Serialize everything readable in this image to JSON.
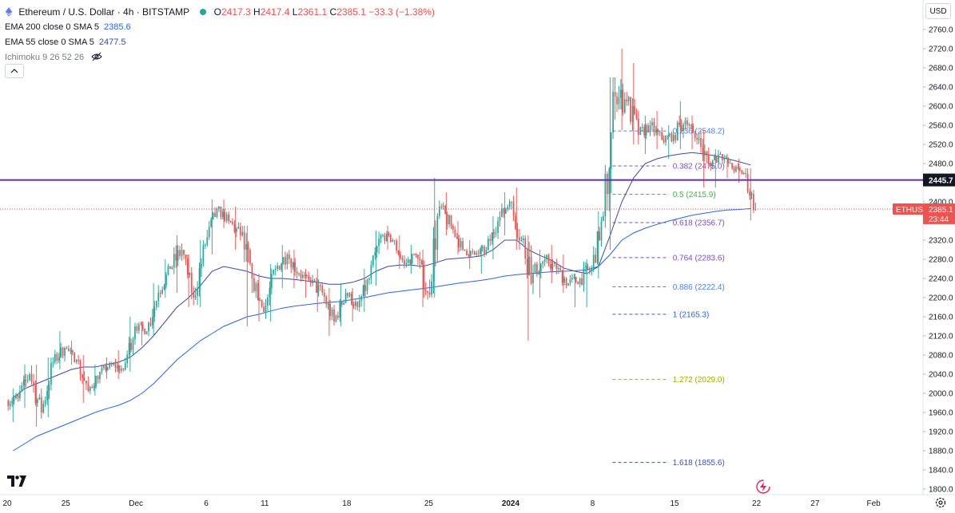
{
  "header": {
    "symbol_title": "Ethereum / U.S. Dollar · 4h · BITSTAMP",
    "ohlc": {
      "O_label": "O",
      "O": "2417.3",
      "H_label": "H",
      "H": "2417.4",
      "L_label": "L",
      "L": "2361.1",
      "C_label": "C",
      "C": "2385.1",
      "change": "−33.3 (−1.38%)"
    },
    "ema200_label": "EMA 200 close 0 SMA 5",
    "ema200_value": "2385.6",
    "ema55_label": "EMA 55 close 0 SMA 5",
    "ema55_value": "2477.5",
    "ichimoku_label": "Ichimoku 9 26 52 26"
  },
  "currency": "USD",
  "colors": {
    "up": "#26a69a",
    "down": "#ef5350",
    "ema200": "#2962ff",
    "ema55": "#3949ab",
    "hline": "#5b2fb6",
    "fib_green": "#4caf50",
    "fib_blue": "#2962ff",
    "fib_purple": "#7b4fc0",
    "fib_olive": "#9cb000",
    "fib_lightblue": "#4f82e8"
  },
  "chart_data": {
    "type": "candlestick",
    "ylim": [
      1790,
      2780
    ],
    "y_ticks": [
      1800,
      1840,
      1880,
      1920,
      1960,
      2000,
      2040,
      2080,
      2120,
      2160,
      2200,
      2240,
      2280,
      2320,
      2360,
      2400,
      2440,
      2480,
      2520,
      2560,
      2600,
      2640,
      2680,
      2720,
      2760
    ],
    "x_ticks": [
      {
        "label": "20",
        "day": 0
      },
      {
        "label": "25",
        "day": 5
      },
      {
        "label": "Dec",
        "day": 11
      },
      {
        "label": "6",
        "day": 17
      },
      {
        "label": "11",
        "day": 22
      },
      {
        "label": "18",
        "day": 29
      },
      {
        "label": "25",
        "day": 36
      },
      {
        "label": "2024",
        "day": 43
      },
      {
        "label": "8",
        "day": 50
      },
      {
        "label": "15",
        "day": 57
      },
      {
        "label": "22",
        "day": 64
      },
      {
        "label": "27",
        "day": 69
      },
      {
        "label": "Feb",
        "day": 74
      }
    ],
    "ohlc_daily": [
      [
        1985,
        2010,
        1940,
        1990
      ],
      [
        1990,
        2060,
        1970,
        2040
      ],
      [
        2040,
        2060,
        1930,
        1960
      ],
      [
        1960,
        2075,
        1950,
        2065
      ],
      [
        2065,
        2130,
        2050,
        2095
      ],
      [
        2095,
        2110,
        2060,
        2070
      ],
      [
        2070,
        2080,
        1980,
        2005
      ],
      [
        2005,
        2060,
        1995,
        2045
      ],
      [
        2045,
        2075,
        2030,
        2060
      ],
      [
        2060,
        2090,
        2030,
        2050
      ],
      [
        2050,
        2160,
        2045,
        2140
      ],
      [
        2140,
        2150,
        2100,
        2130
      ],
      [
        2130,
        2230,
        2120,
        2210
      ],
      [
        2210,
        2280,
        2200,
        2260
      ],
      [
        2260,
        2330,
        2210,
        2300
      ],
      [
        2300,
        2290,
        2180,
        2200
      ],
      [
        2200,
        2320,
        2180,
        2310
      ],
      [
        2310,
        2405,
        2290,
        2385
      ],
      [
        2385,
        2405,
        2345,
        2360
      ],
      [
        2360,
        2390,
        2300,
        2330
      ],
      [
        2330,
        2350,
        2140,
        2240
      ],
      [
        2240,
        2250,
        2150,
        2170
      ],
      [
        2170,
        2270,
        2150,
        2260
      ],
      [
        2260,
        2310,
        2220,
        2290
      ],
      [
        2290,
        2300,
        2220,
        2250
      ],
      [
        2250,
        2260,
        2200,
        2230
      ],
      [
        2230,
        2260,
        2170,
        2210
      ],
      [
        2210,
        2220,
        2120,
        2150
      ],
      [
        2150,
        2230,
        2140,
        2210
      ],
      [
        2210,
        2220,
        2150,
        2180
      ],
      [
        2180,
        2260,
        2170,
        2240
      ],
      [
        2240,
        2340,
        2225,
        2330
      ],
      [
        2330,
        2350,
        2300,
        2320
      ],
      [
        2320,
        2330,
        2260,
        2270
      ],
      [
        2270,
        2310,
        2250,
        2290
      ],
      [
        2290,
        2300,
        2180,
        2210
      ],
      [
        2210,
        2450,
        2200,
        2390
      ],
      [
        2390,
        2420,
        2330,
        2350
      ],
      [
        2350,
        2360,
        2290,
        2300
      ],
      [
        2300,
        2320,
        2260,
        2290
      ],
      [
        2290,
        2310,
        2250,
        2300
      ],
      [
        2300,
        2370,
        2280,
        2360
      ],
      [
        2360,
        2420,
        2330,
        2400
      ],
      [
        2400,
        2430,
        2300,
        2320
      ],
      [
        2320,
        2330,
        2110,
        2250
      ],
      [
        2250,
        2300,
        2200,
        2280
      ],
      [
        2280,
        2310,
        2230,
        2260
      ],
      [
        2260,
        2290,
        2210,
        2230
      ],
      [
        2230,
        2250,
        2180,
        2240
      ],
      [
        2240,
        2280,
        2180,
        2260
      ],
      [
        2260,
        2380,
        2240,
        2370
      ],
      [
        2370,
        2660,
        2300,
        2620
      ],
      [
        2620,
        2720,
        2550,
        2610
      ],
      [
        2610,
        2690,
        2520,
        2540
      ],
      [
        2540,
        2580,
        2500,
        2560
      ],
      [
        2560,
        2590,
        2510,
        2530
      ],
      [
        2530,
        2560,
        2490,
        2540
      ],
      [
        2540,
        2610,
        2510,
        2570
      ],
      [
        2570,
        2580,
        2510,
        2530
      ],
      [
        2530,
        2550,
        2430,
        2480
      ],
      [
        2480,
        2510,
        2430,
        2500
      ],
      [
        2500,
        2500,
        2450,
        2470
      ],
      [
        2470,
        2490,
        2440,
        2460
      ],
      [
        2460,
        2470,
        2361,
        2385
      ]
    ],
    "ema55_daily": [
      1990,
      2010,
      2020,
      2030,
      2040,
      2050,
      2055,
      2055,
      2060,
      2065,
      2075,
      2095,
      2120,
      2150,
      2180,
      2200,
      2225,
      2255,
      2265,
      2260,
      2255,
      2245,
      2240,
      2240,
      2238,
      2235,
      2232,
      2228,
      2228,
      2232,
      2240,
      2255,
      2265,
      2268,
      2268,
      2265,
      2272,
      2280,
      2282,
      2284,
      2287,
      2300,
      2320,
      2320,
      2300,
      2288,
      2278,
      2262,
      2255,
      2250,
      2265,
      2330,
      2400,
      2450,
      2480,
      2490,
      2496,
      2500,
      2503,
      2500,
      2496,
      2490,
      2484,
      2477
    ],
    "ema200_daily": [
      1880,
      1895,
      1910,
      1920,
      1930,
      1940,
      1950,
      1960,
      1968,
      1975,
      1985,
      2000,
      2020,
      2045,
      2070,
      2090,
      2110,
      2125,
      2140,
      2150,
      2160,
      2165,
      2172,
      2178,
      2182,
      2185,
      2188,
      2190,
      2192,
      2196,
      2200,
      2205,
      2210,
      2213,
      2216,
      2219,
      2222,
      2226,
      2230,
      2233,
      2236,
      2240,
      2245,
      2248,
      2250,
      2252,
      2254,
      2255,
      2256,
      2258,
      2265,
      2290,
      2320,
      2335,
      2345,
      2353,
      2360,
      2366,
      2372,
      2376,
      2380,
      2383,
      2384,
      2386
    ],
    "horizontal_line": {
      "value": 2445.7,
      "label": "2445.7"
    },
    "current_price": {
      "value": 2385.1,
      "label": "2385.1",
      "symbol": "ETHUSD",
      "countdown": "23:44"
    },
    "fib_levels": [
      {
        "ratio": "0.236",
        "price": "2548.2",
        "value": 2548.2,
        "color": "#4f82e8"
      },
      {
        "ratio": "0.382",
        "price": "2475.0",
        "value": 2475.0,
        "color": "#7b4fc0"
      },
      {
        "ratio": "0.5",
        "price": "2415.9",
        "value": 2415.9,
        "color": "#4caf50"
      },
      {
        "ratio": "0.618",
        "price": "2356.7",
        "value": 2356.7,
        "color": "#7b4fc0"
      },
      {
        "ratio": "0.764",
        "price": "2283.6",
        "value": 2283.6,
        "color": "#7b4fc0"
      },
      {
        "ratio": "0.886",
        "price": "2222.4",
        "value": 2222.4,
        "color": "#4f82e8"
      },
      {
        "ratio": "1",
        "price": "2165.3",
        "value": 2165.3,
        "color": "#2962ff"
      },
      {
        "ratio": "1.272",
        "price": "2029.0",
        "value": 2029.0,
        "color": "#9cb000"
      },
      {
        "ratio": "1.618",
        "price": "1855.6",
        "value": 1855.6,
        "color": "#3f51b5"
      }
    ]
  }
}
